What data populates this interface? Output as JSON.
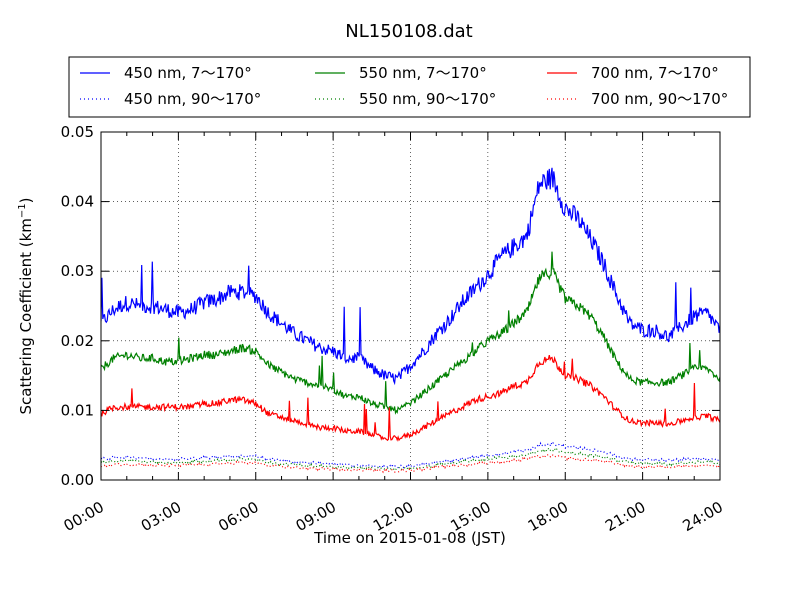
{
  "chart_data": {
    "type": "line",
    "title": "NL150108.dat",
    "xlabel": "Time on 2015-01-08 (JST)",
    "ylabel": "Scattering Coefficient (km",
    "ylabel_sup": "−1",
    "ylabel_end": ")",
    "xlim": [
      "00:00",
      "24:00"
    ],
    "ylim": [
      0,
      0.05
    ],
    "x_tick_labels": [
      "00:00",
      "03:00",
      "06:00",
      "09:00",
      "12:00",
      "15:00",
      "18:00",
      "21:00",
      "24:00"
    ],
    "y_tick_labels": [
      "0.00",
      "0.01",
      "0.02",
      "0.03",
      "0.04",
      "0.05"
    ],
    "grid": true,
    "legend_position": "above plot, 3 columns",
    "x_hours": [
      0,
      0.5,
      1,
      1.5,
      2,
      2.5,
      3,
      3.5,
      4,
      4.5,
      5,
      5.5,
      6,
      6.5,
      7,
      7.5,
      8,
      8.5,
      9,
      9.5,
      10,
      10.5,
      11,
      11.5,
      12,
      12.5,
      13,
      13.5,
      14,
      14.5,
      15,
      15.5,
      16,
      16.5,
      17,
      17.5,
      18,
      18.5,
      19,
      19.5,
      20,
      20.5,
      21,
      21.5,
      22,
      22.5,
      23,
      23.5,
      24
    ],
    "series": [
      {
        "name": "450 nm, 7～170°",
        "color": "#0000ff",
        "style": "solid",
        "values": [
          0.0225,
          0.0245,
          0.0255,
          0.025,
          0.025,
          0.0245,
          0.024,
          0.0245,
          0.0255,
          0.026,
          0.027,
          0.027,
          0.0265,
          0.024,
          0.0225,
          0.021,
          0.02,
          0.019,
          0.0185,
          0.0175,
          0.0175,
          0.016,
          0.015,
          0.0145,
          0.0165,
          0.0185,
          0.021,
          0.023,
          0.0255,
          0.0275,
          0.0295,
          0.032,
          0.0335,
          0.035,
          0.0425,
          0.0435,
          0.039,
          0.0375,
          0.0345,
          0.031,
          0.0265,
          0.0225,
          0.0215,
          0.0215,
          0.0205,
          0.022,
          0.0235,
          0.024,
          0.0215
        ]
      },
      {
        "name": "550 nm, 7～170°",
        "color": "#008000",
        "style": "solid",
        "values": [
          0.016,
          0.0175,
          0.018,
          0.0175,
          0.0175,
          0.017,
          0.017,
          0.0175,
          0.018,
          0.018,
          0.0185,
          0.019,
          0.0185,
          0.0165,
          0.0155,
          0.0145,
          0.014,
          0.0135,
          0.013,
          0.012,
          0.012,
          0.011,
          0.0105,
          0.01,
          0.011,
          0.0125,
          0.014,
          0.0155,
          0.017,
          0.0185,
          0.02,
          0.021,
          0.0225,
          0.024,
          0.029,
          0.03,
          0.026,
          0.025,
          0.0235,
          0.0205,
          0.017,
          0.0145,
          0.014,
          0.014,
          0.014,
          0.015,
          0.016,
          0.016,
          0.0145
        ]
      },
      {
        "name": "700 nm, 7～170°",
        "color": "#ff0000",
        "style": "solid",
        "values": [
          0.0095,
          0.0105,
          0.0105,
          0.0105,
          0.0105,
          0.0105,
          0.0105,
          0.0105,
          0.011,
          0.011,
          0.0115,
          0.0115,
          0.011,
          0.0095,
          0.009,
          0.0085,
          0.008,
          0.0075,
          0.0075,
          0.007,
          0.007,
          0.0065,
          0.006,
          0.006,
          0.0065,
          0.0075,
          0.0085,
          0.0095,
          0.0105,
          0.0115,
          0.012,
          0.0125,
          0.0135,
          0.014,
          0.017,
          0.0175,
          0.015,
          0.0145,
          0.0135,
          0.012,
          0.01,
          0.0085,
          0.0082,
          0.0082,
          0.008,
          0.0085,
          0.009,
          0.0092,
          0.0085
        ]
      },
      {
        "name": "450 nm, 90～170°",
        "color": "#0000ff",
        "style": "dotted",
        "values": [
          0.003,
          0.0032,
          0.0033,
          0.0032,
          0.0031,
          0.003,
          0.003,
          0.0031,
          0.0032,
          0.0033,
          0.0034,
          0.0035,
          0.0034,
          0.003,
          0.0028,
          0.0026,
          0.0025,
          0.0024,
          0.0023,
          0.0022,
          0.0021,
          0.002,
          0.0019,
          0.0019,
          0.002,
          0.0022,
          0.0025,
          0.0028,
          0.003,
          0.0033,
          0.0035,
          0.0037,
          0.004,
          0.0043,
          0.005,
          0.0052,
          0.0048,
          0.0046,
          0.0043,
          0.004,
          0.0035,
          0.003,
          0.0029,
          0.0029,
          0.0028,
          0.0029,
          0.003,
          0.0031,
          0.0028
        ]
      },
      {
        "name": "550 nm, 90～170°",
        "color": "#008000",
        "style": "dotted",
        "values": [
          0.0025,
          0.0027,
          0.0028,
          0.0027,
          0.0026,
          0.0025,
          0.0025,
          0.0026,
          0.0027,
          0.0028,
          0.0029,
          0.003,
          0.0029,
          0.0025,
          0.0023,
          0.0022,
          0.0021,
          0.002,
          0.0019,
          0.0018,
          0.0018,
          0.0017,
          0.0016,
          0.0016,
          0.0017,
          0.0019,
          0.0021,
          0.0024,
          0.0026,
          0.0028,
          0.003,
          0.0032,
          0.0034,
          0.0036,
          0.0042,
          0.0044,
          0.004,
          0.0038,
          0.0036,
          0.0033,
          0.0029,
          0.0025,
          0.0024,
          0.0024,
          0.0023,
          0.0024,
          0.0025,
          0.0026,
          0.0023
        ]
      },
      {
        "name": "700 nm, 90～170°",
        "color": "#ff0000",
        "style": "dotted",
        "values": [
          0.002,
          0.0022,
          0.0022,
          0.0022,
          0.0021,
          0.0021,
          0.0021,
          0.0021,
          0.0022,
          0.0023,
          0.0024,
          0.0025,
          0.0024,
          0.0021,
          0.0019,
          0.0018,
          0.0017,
          0.0016,
          0.0016,
          0.0015,
          0.0015,
          0.0014,
          0.0013,
          0.0013,
          0.0014,
          0.0016,
          0.0018,
          0.002,
          0.0021,
          0.0023,
          0.0025,
          0.0026,
          0.0028,
          0.003,
          0.0034,
          0.0035,
          0.0032,
          0.003,
          0.0029,
          0.0027,
          0.0023,
          0.002,
          0.0019,
          0.0019,
          0.0019,
          0.002,
          0.002,
          0.0021,
          0.0019
        ]
      }
    ]
  }
}
